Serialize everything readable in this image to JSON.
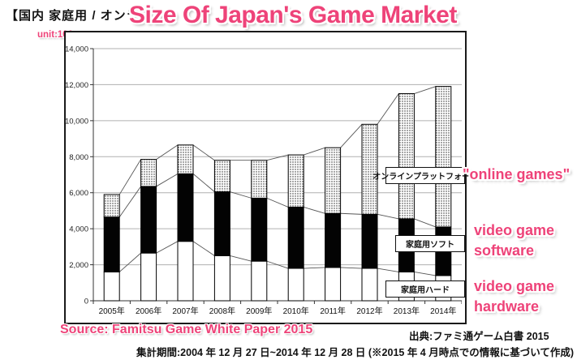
{
  "page": {
    "title_jp": "【国内 家庭用 / オンラ",
    "title_overlay": "Size Of Japan's Game Market",
    "unit_label": "unit:100 mn yen",
    "annotations": {
      "online": "\"online games\"",
      "software_line1": "video game",
      "software_line2": "software",
      "hardware_line1": "video game",
      "hardware_line2": "hardware"
    },
    "source_overlay": "Source: Famitsu Game White Paper 2015",
    "source_jp": "出典:ファミ通ゲーム白書 2015",
    "period_note": "集計期間:2004 年 12 月 27 日~2014 年 12 月 28 日 (※2015 年 4 月時点での情報に基づいて作成)",
    "colors": {
      "accent_pink": "#ee4379",
      "grid_gray": "#b0b0b0"
    }
  },
  "chart_data": {
    "type": "bar",
    "stacked": true,
    "title": "国内 家庭用 / オンラインプラットフォーム ゲーム市場規模 (unit:100 mn yen)",
    "categories": [
      "2005年",
      "2006年",
      "2007年",
      "2008年",
      "2009年",
      "2010年",
      "2011年",
      "2012年",
      "2013年",
      "2014年"
    ],
    "series": [
      {
        "name": "家庭用ハード",
        "style": "white",
        "values": [
          1600,
          2650,
          3300,
          2500,
          2200,
          1800,
          1850,
          1800,
          1600,
          1400
        ]
      },
      {
        "name": "家庭用ソフト",
        "style": "black",
        "values": [
          3050,
          3700,
          3750,
          3550,
          3500,
          3400,
          3000,
          3000,
          2950,
          2700
        ]
      },
      {
        "name": "オンラインプラットフォーム",
        "style": "dotted",
        "values": [
          1250,
          1500,
          1600,
          1750,
          2100,
          2900,
          3650,
          5000,
          6950,
          7800
        ]
      }
    ],
    "totals": [
      5900,
      7850,
      8650,
      7800,
      7800,
      8100,
      8500,
      9800,
      11500,
      11900
    ],
    "ylim": [
      0,
      14000
    ],
    "ytick_step": 2000,
    "ytick_labels": [
      "14,000",
      "12,000",
      "10,000",
      "8,000",
      "6,000",
      "4,000",
      "2,000",
      "0"
    ],
    "grid": true,
    "connector_lines": true,
    "legend_position": "inside-right"
  }
}
